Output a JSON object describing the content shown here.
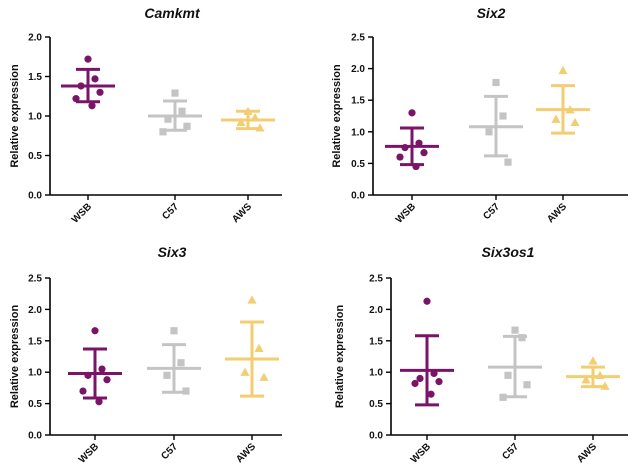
{
  "chart_data": [
    {
      "type": "scatter",
      "title": "Camkmt",
      "ylabel": "Relative expression",
      "ylim": [
        0,
        2.0
      ],
      "yticks": [
        "0.0",
        "0.5",
        "1.0",
        "1.5",
        "2.0"
      ],
      "categories": [
        "WSB",
        "C57",
        "AWS"
      ],
      "groups": [
        {
          "name": "WSB",
          "color": "#7a1466",
          "marker": "circle",
          "mean": 1.38,
          "sd_upper": 1.59,
          "sd_lower": 1.18,
          "points": [
            1.72,
            1.47,
            1.38,
            1.3,
            1.22,
            1.13
          ]
        },
        {
          "name": "C57",
          "color": "#c4c4c4",
          "marker": "square",
          "mean": 1.0,
          "sd_upper": 1.19,
          "sd_lower": 0.82,
          "points": [
            1.29,
            1.06,
            0.96,
            0.87,
            0.8
          ]
        },
        {
          "name": "AWS",
          "color": "#f3cd71",
          "marker": "triangle",
          "mean": 0.95,
          "sd_upper": 1.06,
          "sd_lower": 0.84,
          "points": [
            1.06,
            0.98,
            0.92,
            0.85
          ]
        }
      ]
    },
    {
      "type": "scatter",
      "title": "Six2",
      "ylabel": "Relative expression",
      "ylim": [
        0,
        2.5
      ],
      "yticks": [
        "0.0",
        "0.5",
        "1.0",
        "1.5",
        "2.0",
        "2.5"
      ],
      "categories": [
        "WSB",
        "C57",
        "AWS"
      ],
      "groups": [
        {
          "name": "WSB",
          "color": "#7a1466",
          "marker": "circle",
          "mean": 0.77,
          "sd_upper": 1.06,
          "sd_lower": 0.48,
          "points": [
            1.3,
            0.82,
            0.75,
            0.67,
            0.6,
            0.45
          ]
        },
        {
          "name": "C57",
          "color": "#c4c4c4",
          "marker": "square",
          "mean": 1.08,
          "sd_upper": 1.56,
          "sd_lower": 0.62,
          "points": [
            1.78,
            1.25,
            1.0,
            0.52
          ]
        },
        {
          "name": "AWS",
          "color": "#f3cd71",
          "marker": "triangle",
          "mean": 1.35,
          "sd_upper": 1.73,
          "sd_lower": 0.98,
          "points": [
            1.97,
            1.35,
            1.2,
            1.15
          ]
        }
      ]
    },
    {
      "type": "scatter",
      "title": "Six3",
      "ylabel": "Relative expression",
      "ylim": [
        0,
        2.5
      ],
      "yticks": [
        "0.0",
        "0.5",
        "1.0",
        "1.5",
        "2.0",
        "2.5"
      ],
      "categories": [
        "WSB",
        "C57",
        "AWS"
      ],
      "groups": [
        {
          "name": "WSB",
          "color": "#7a1466",
          "marker": "circle",
          "mean": 0.98,
          "sd_upper": 1.37,
          "sd_lower": 0.59,
          "points": [
            1.66,
            1.05,
            0.95,
            0.88,
            0.7,
            0.53
          ]
        },
        {
          "name": "C57",
          "color": "#c4c4c4",
          "marker": "square",
          "mean": 1.06,
          "sd_upper": 1.44,
          "sd_lower": 0.68,
          "points": [
            1.66,
            1.15,
            0.95,
            0.7
          ]
        },
        {
          "name": "AWS",
          "color": "#f3cd71",
          "marker": "triangle",
          "mean": 1.21,
          "sd_upper": 1.8,
          "sd_lower": 0.62,
          "points": [
            2.15,
            1.38,
            1.0,
            0.92
          ]
        }
      ]
    },
    {
      "type": "scatter",
      "title": "Six3os1",
      "ylabel": "Relative expression",
      "ylim": [
        0,
        2.5
      ],
      "yticks": [
        "0.0",
        "0.5",
        "1.0",
        "1.5",
        "2.0",
        "2.5"
      ],
      "categories": [
        "WSB",
        "C57",
        "AWS"
      ],
      "groups": [
        {
          "name": "WSB",
          "color": "#7a1466",
          "marker": "circle",
          "mean": 1.03,
          "sd_upper": 1.58,
          "sd_lower": 0.48,
          "points": [
            2.13,
            0.98,
            0.9,
            0.85,
            0.82,
            0.65
          ]
        },
        {
          "name": "C57",
          "color": "#c4c4c4",
          "marker": "square",
          "mean": 1.08,
          "sd_upper": 1.57,
          "sd_lower": 0.61,
          "points": [
            1.67,
            1.55,
            0.95,
            0.8,
            0.6
          ]
        },
        {
          "name": "AWS",
          "color": "#f3cd71",
          "marker": "triangle",
          "mean": 0.93,
          "sd_upper": 1.08,
          "sd_lower": 0.77,
          "points": [
            1.18,
            0.95,
            0.88,
            0.78
          ]
        }
      ]
    }
  ]
}
